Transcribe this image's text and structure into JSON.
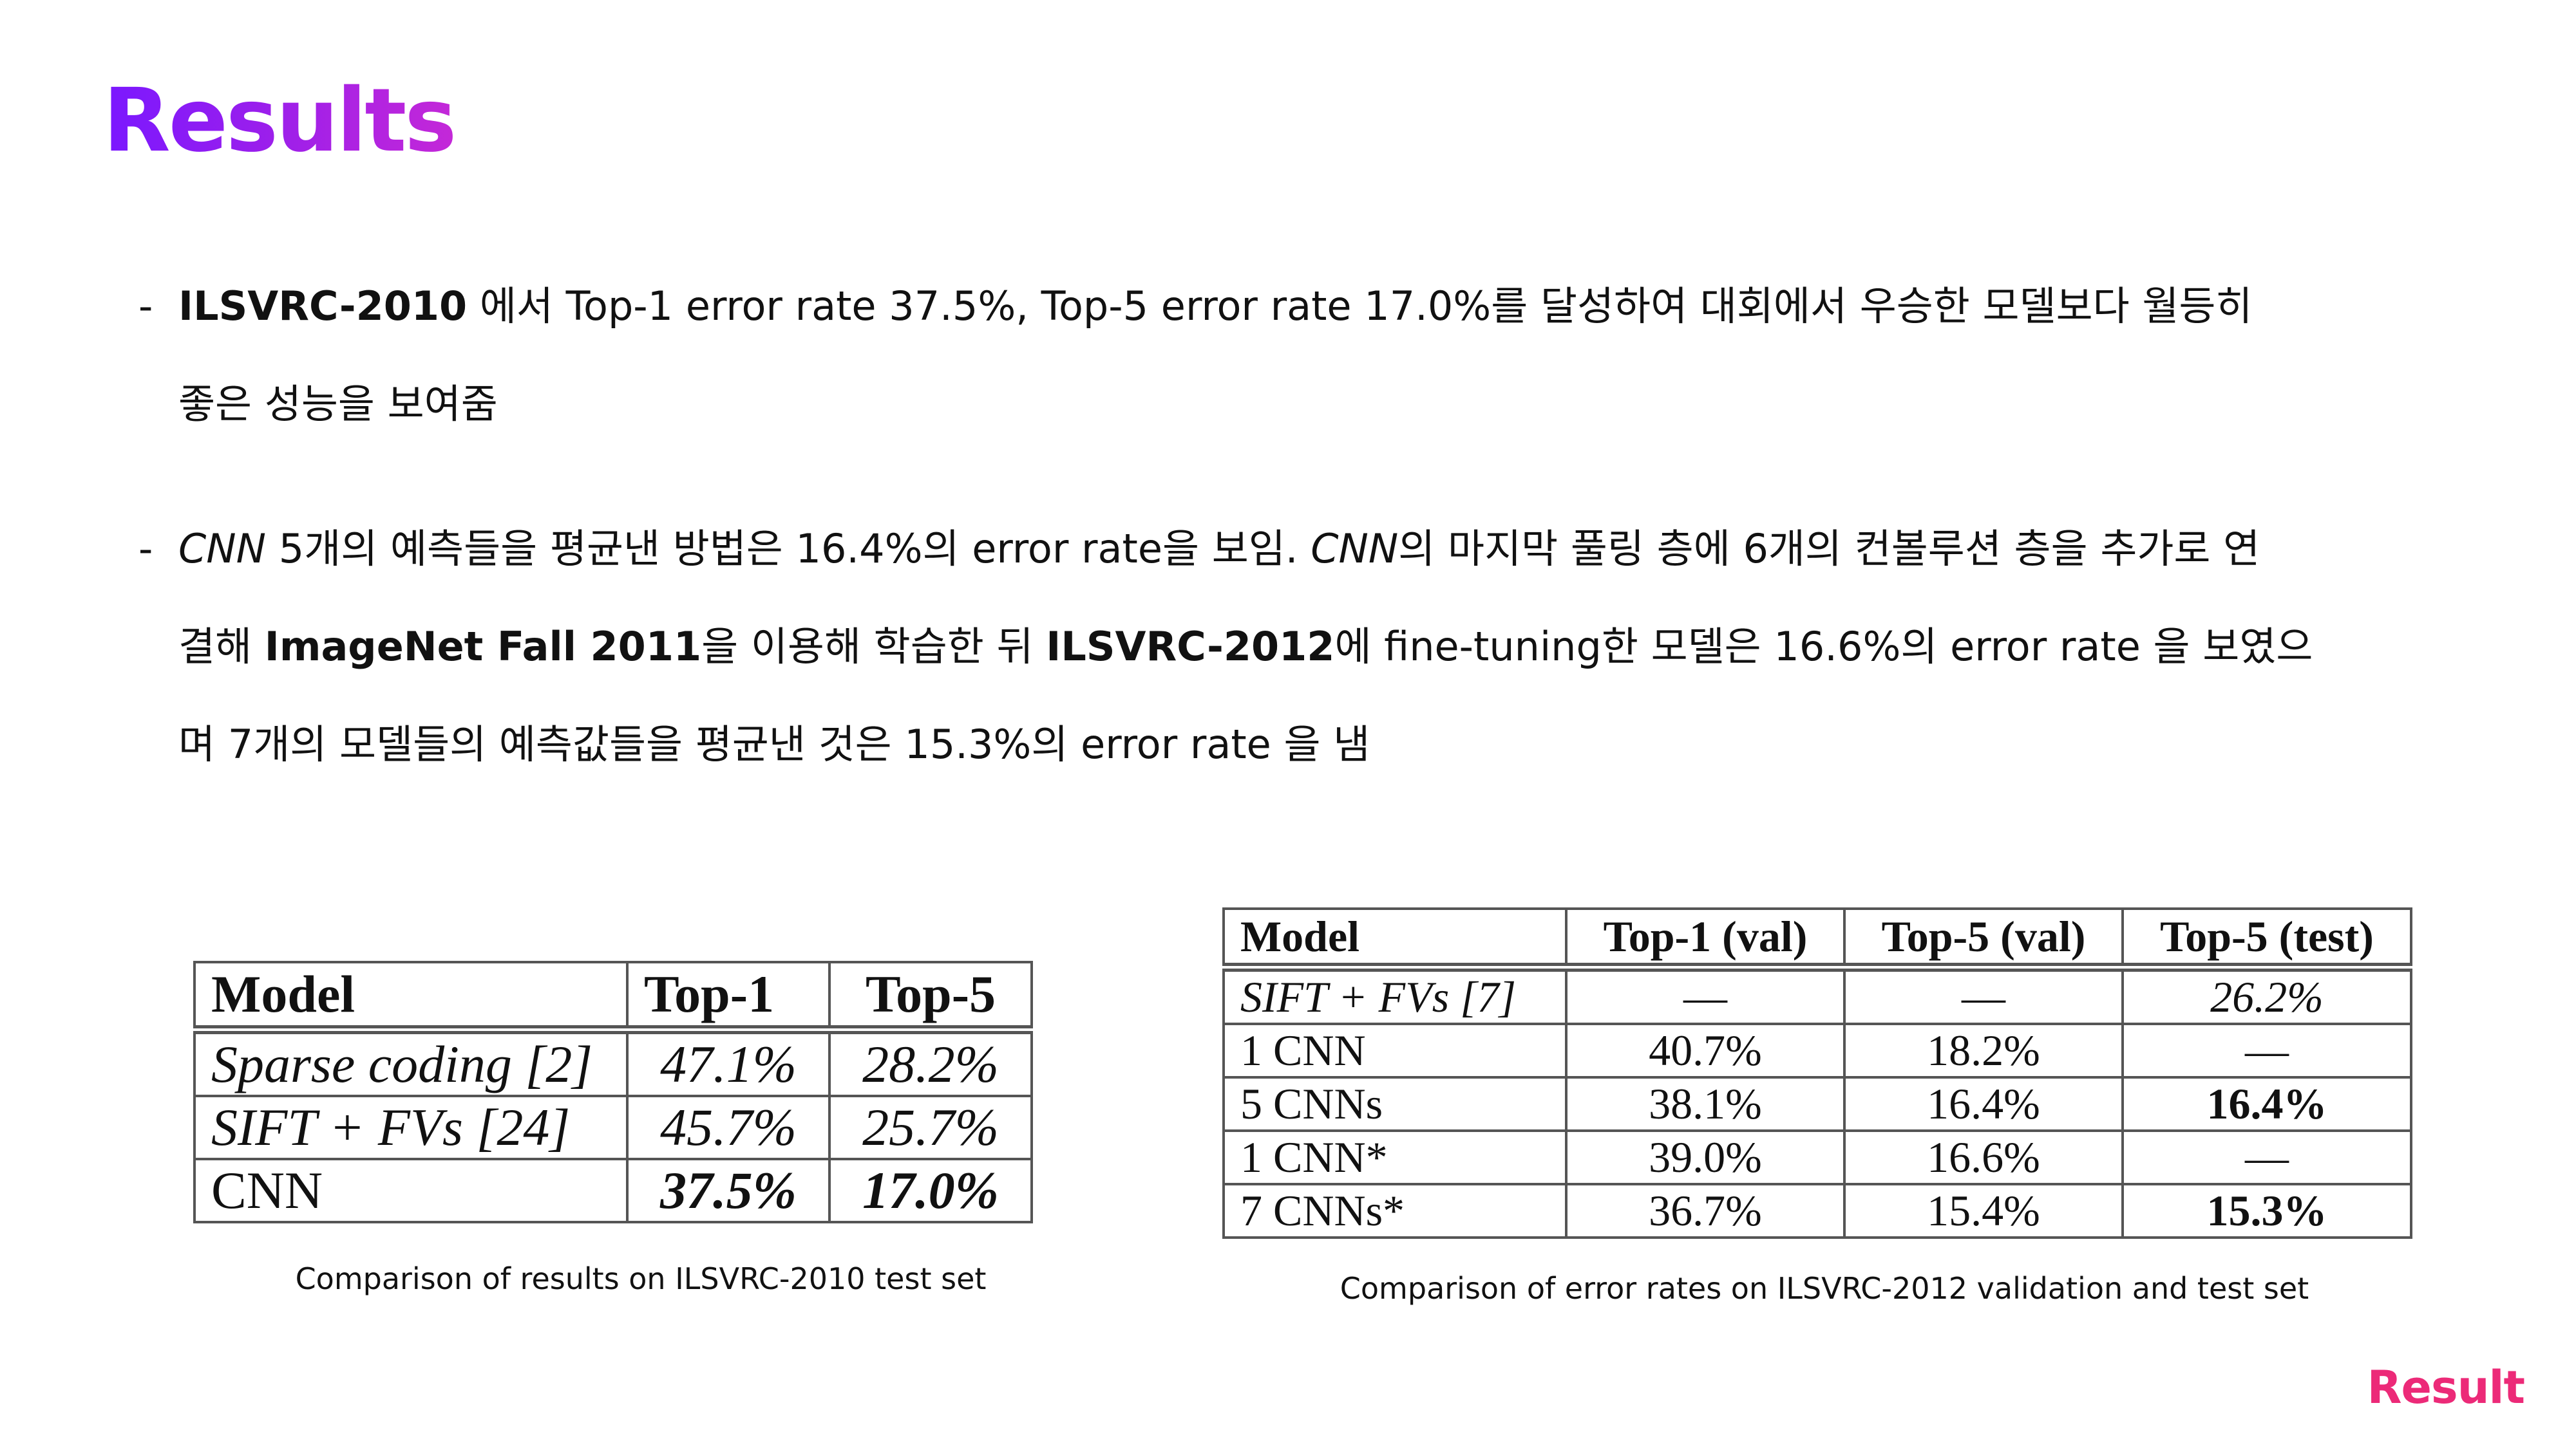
{
  "title": "Results",
  "bullet1": {
    "dash": "-",
    "bold1": "ILSVRC-2010",
    "text1": " 에서 Top-1 error rate 37.5%, Top-5 error rate 17.0%를 달성하여 대회에서 우승한 모델보다 월등히",
    "text2": "좋은 성능을 보여줌"
  },
  "bullet2": {
    "dash": "-",
    "italic1": "CNN",
    "text1": " 5개의 예측들을 평균낸 방법은 16.4%의 error rate을 보임. ",
    "italic2": "CNN",
    "text2": "의 마지막 풀링 층에 6개의 컨볼루션 층을 추가로 연",
    "text3": "결해 ",
    "bold1": "ImageNet Fall 2011",
    "text4": "을 이용해 학습한 뒤 ",
    "bold2": "ILSVRC-2012",
    "text5": "에 fine-tuning한 모델은 16.6%의 error rate 을 보였으",
    "text6": "며 7개의 모델들의 예측값들을 평균낸 것은 15.3%의 error rate 을 냄"
  },
  "table1": {
    "headers": [
      "Model",
      "Top-1",
      "Top-5"
    ],
    "rows": [
      [
        "Sparse coding [2]",
        "47.1%",
        "28.2%"
      ],
      [
        "SIFT + FVs [24]",
        "45.7%",
        "25.7%"
      ],
      [
        "CNN",
        "37.5%",
        "17.0%"
      ]
    ],
    "caption": "Comparison of results on ILSVRC-2010 test set"
  },
  "table2": {
    "headers": [
      "Model",
      "Top-1 (val)",
      "Top-5 (val)",
      "Top-5 (test)"
    ],
    "rows": [
      [
        "SIFT + FVs [7]",
        "—",
        "—",
        "26.2%"
      ],
      [
        "1 CNN",
        "40.7%",
        "18.2%",
        "—"
      ],
      [
        "5 CNNs",
        "38.1%",
        "16.4%",
        "16.4%"
      ],
      [
        "1 CNN*",
        "39.0%",
        "16.6%",
        "—"
      ],
      [
        "7 CNNs*",
        "36.7%",
        "15.4%",
        "15.3%"
      ]
    ],
    "caption": "Comparison of error rates on ILSVRC-2012 validation and test set"
  },
  "footer": "Result"
}
